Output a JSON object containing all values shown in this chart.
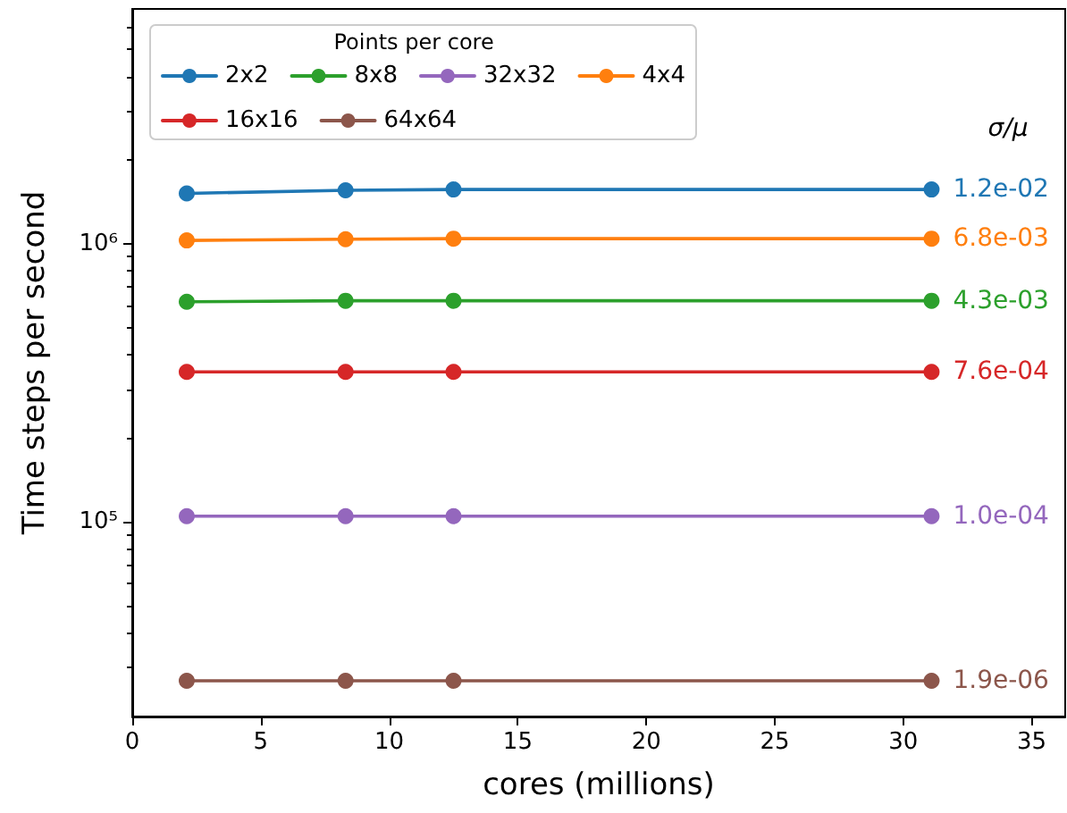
{
  "chart_data": {
    "type": "line",
    "xlabel": "cores (millions)",
    "ylabel": "Time steps per second",
    "legend_title": "Points per core",
    "x": [
      2.12,
      8.3,
      12.5,
      31.1
    ],
    "series": [
      {
        "name": "2x2",
        "color": "#1f77b4",
        "values": [
          1520000,
          1560000,
          1570000,
          1570000
        ]
      },
      {
        "name": "4x4",
        "color": "#ff7f0e",
        "values": [
          1030000,
          1040000,
          1045000,
          1045000
        ]
      },
      {
        "name": "8x8",
        "color": "#2ca02c",
        "values": [
          620000,
          625000,
          625000,
          625000
        ]
      },
      {
        "name": "16x16",
        "color": "#d62728",
        "values": [
          347000,
          347000,
          347000,
          347000
        ]
      },
      {
        "name": "32x32",
        "color": "#9467bd",
        "values": [
          105000,
          105000,
          105000,
          105000
        ]
      },
      {
        "name": "64x64",
        "color": "#8c564b",
        "values": [
          26900,
          26900,
          26900,
          26900
        ]
      }
    ],
    "annotations": [
      "σ/μ",
      "1.2e-02",
      "6.8e-03",
      "4.3e-03",
      "7.6e-04",
      "1.0e-04",
      "1.9e-06"
    ],
    "xlim": [
      0,
      36.3
    ],
    "xticks": [
      0,
      5,
      10,
      15,
      20,
      25,
      30,
      35
    ],
    "ylim": [
      20000,
      7000000
    ],
    "yticks": [
      {
        "value": 100000,
        "label": "10⁵"
      },
      {
        "value": 1000000,
        "label": "10⁶"
      }
    ],
    "log": "y",
    "grid": false,
    "legend": "top left",
    "marker": "circle",
    "line_style": "solid"
  }
}
